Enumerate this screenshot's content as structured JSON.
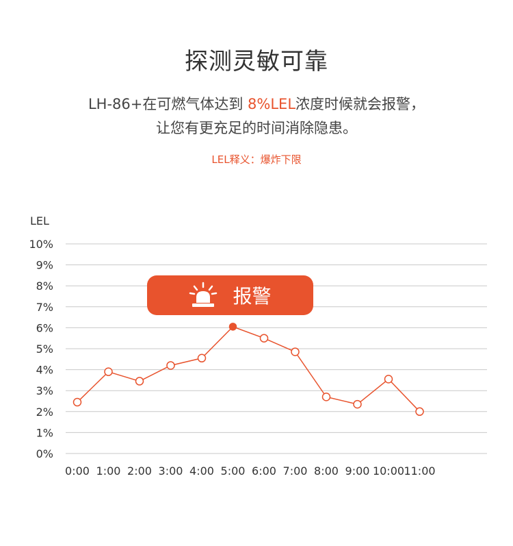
{
  "header": {
    "title": "探测灵敏可靠",
    "line1_before": "LH-86+在可燃气体达到 ",
    "line1_accent": "8%LEL",
    "line1_after": "浓度时候就会报警，",
    "line2": "让您有更充足的时间消除隐患。",
    "note": "LEL释义：爆炸下限"
  },
  "alarm": {
    "label": "报警",
    "icon": "siren-icon"
  },
  "colors": {
    "accent": "#e8532d",
    "grid": "#c8c8c8"
  },
  "chart_data": {
    "type": "line",
    "ylabel": "LEL",
    "x": [
      "0:00",
      "1:00",
      "2:00",
      "3:00",
      "4:00",
      "5:00",
      "6:00",
      "7:00",
      "8:00",
      "9:00",
      "10:00",
      "11:00"
    ],
    "values": [
      2.45,
      3.9,
      3.45,
      4.2,
      4.55,
      6.05,
      5.5,
      4.85,
      2.7,
      2.35,
      3.55,
      2.0
    ],
    "yticks": [
      "0%",
      "1%",
      "2%",
      "3%",
      "4%",
      "5%",
      "6%",
      "7%",
      "8%",
      "9%",
      "10%"
    ],
    "ylim": [
      0,
      10
    ],
    "grid": true,
    "highlight_index": 5
  }
}
